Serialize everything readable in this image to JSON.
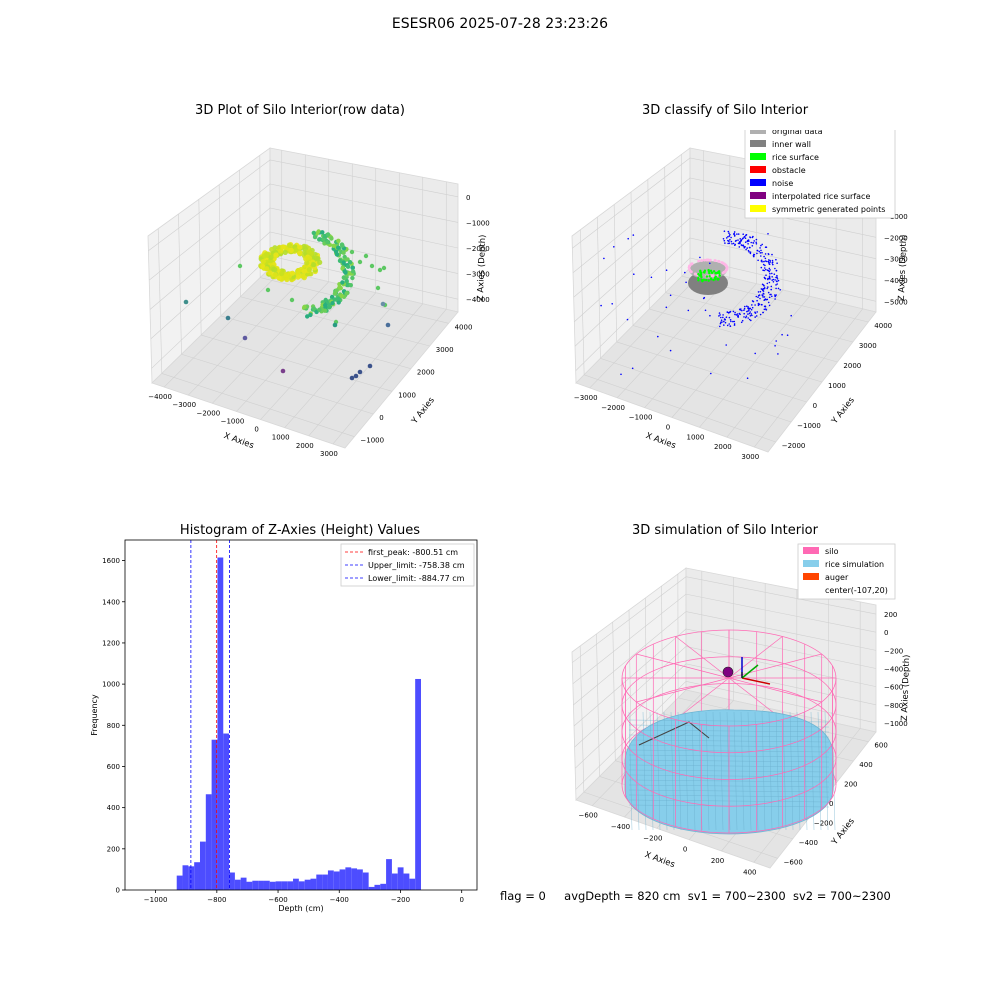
{
  "figure": {
    "suptitle": "ESESR06 2025-07-28 23:23:26",
    "status": {
      "flag": "flag = 0",
      "avg_depth": "avgDepth = 820 cm",
      "sv1": "sv1 = 700~2300",
      "sv2": "sv2 = 700~2300"
    }
  },
  "chart_data": [
    {
      "type": "scatter",
      "title": "3D Plot of Silo Interior(row data)",
      "projection": "3d",
      "xlabel": "X Axies",
      "ylabel": "Y Axies",
      "zlabel": "Z Axies (Depth)",
      "x_ticks": [
        "−4000",
        "−3000",
        "−2000",
        "−1000",
        "0",
        "1000",
        "2000",
        "3000"
      ],
      "y_ticks": [
        "−1000",
        "0",
        "1000",
        "2000",
        "3000",
        "4000"
      ],
      "z_ticks": [
        "0",
        "−1000",
        "−2000",
        "−3000",
        "−4000"
      ],
      "xlim": [
        -4000,
        3000
      ],
      "ylim": [
        -1500,
        4500
      ],
      "zlim": [
        -4500,
        0
      ],
      "colormap": "viridis",
      "clusters": [
        {
          "name": "",
          "x_range": [
            -1200,
            0
          ],
          "y_range": [
            1000,
            2000
          ],
          "z_range": [
            -2300,
            -1900
          ],
          "color": "#dfe318",
          "count": 260
        },
        {
          "name": "",
          "x_range": [
            -600,
            1200
          ],
          "y_range": [
            800,
            2600
          ],
          "z_range": [
            -3200,
            -1800
          ],
          "color": "#6ccd5a",
          "count": 160
        },
        {
          "name": "",
          "x_range": [
            -2500,
            2500
          ],
          "y_range": [
            -500,
            3500
          ],
          "z_range": [
            -4200,
            -2500
          ],
          "color": "#3b528b",
          "count": 12
        }
      ]
    },
    {
      "type": "scatter",
      "title": "3D classify of Silo Interior",
      "projection": "3d",
      "xlabel": "X Axies",
      "ylabel": "Y Axies",
      "zlabel": "Z Axies (Depth)",
      "x_ticks": [
        "−3000",
        "−2000",
        "−1000",
        "0",
        "1000",
        "2000",
        "3000"
      ],
      "y_ticks": [
        "−2000",
        "−1000",
        "0",
        "1000",
        "2000",
        "3000",
        "4000"
      ],
      "z_ticks": [
        "0",
        "−1000",
        "−2000",
        "−3000",
        "−4000",
        "−5000"
      ],
      "xlim": [
        -3500,
        3000
      ],
      "ylim": [
        -2000,
        4500
      ],
      "zlim": [
        -5500,
        0
      ],
      "legend": {
        "placement": "top-right",
        "entries": [
          {
            "label": "original data",
            "color": "#b0b0b0"
          },
          {
            "label": "inner wall",
            "color": "#808080"
          },
          {
            "label": "rice surface",
            "color": "#00ff00"
          },
          {
            "label": "obstacle",
            "color": "#ff0000"
          },
          {
            "label": "noise",
            "color": "#0000ff"
          },
          {
            "label": "interpolated rice surface",
            "color": "#800080"
          },
          {
            "label": "symmetric generated points",
            "color": "#ffff00"
          }
        ]
      }
    },
    {
      "type": "bar",
      "title": "Histogram of Z-Axies (Height) Values",
      "xlabel": "Depth (cm)",
      "ylabel": "Frequency",
      "xlim": [
        -1100,
        50
      ],
      "ylim": [
        0,
        1700
      ],
      "x_ticks": [
        -1000,
        -800,
        -600,
        -400,
        -200,
        0
      ],
      "y_ticks": [
        0,
        200,
        400,
        600,
        800,
        1000,
        1200,
        1400,
        1600
      ],
      "bin_width": 19,
      "bar_color": "#4d4dff",
      "bins_start": [
        -950,
        -931,
        -912,
        -893,
        -874,
        -855,
        -836,
        -817,
        -798,
        -779,
        -760,
        -741,
        -722,
        -703,
        -684,
        -665,
        -646,
        -627,
        -608,
        -589,
        -570,
        -551,
        -532,
        -513,
        -494,
        -475,
        -456,
        -437,
        -418,
        -399,
        -380,
        -361,
        -342,
        -323,
        -304,
        -285,
        -266,
        -247,
        -228,
        -209,
        -190,
        -171,
        -152,
        -133,
        -114,
        -95,
        -76,
        -57,
        -38,
        -19
      ],
      "counts": [
        0,
        70,
        120,
        115,
        135,
        235,
        465,
        730,
        1615,
        760,
        85,
        50,
        60,
        40,
        45,
        45,
        45,
        40,
        42,
        42,
        42,
        55,
        42,
        50,
        55,
        75,
        75,
        95,
        90,
        100,
        110,
        105,
        100,
        85,
        15,
        25,
        30,
        150,
        80,
        110,
        80,
        55,
        1025,
        0,
        0,
        0,
        0,
        0,
        0,
        0
      ],
      "reference_lines": [
        {
          "label": "first_peak: -800.51 cm",
          "x": -800.51,
          "color": "#ff0000"
        },
        {
          "label": "Upper_limit: -758.38 cm",
          "x": -758.38,
          "color": "#0000ff"
        },
        {
          "label": "Lower_limit: -884.77 cm",
          "x": -884.77,
          "color": "#0000ff"
        }
      ],
      "legend": {
        "placement": "top-right"
      }
    },
    {
      "type": "surface",
      "title": "3D simulation of Silo Interior",
      "projection": "3d",
      "xlabel": "X Axies",
      "ylabel": "Y Axies",
      "zlabel": "Z Axies (Depth)",
      "x_ticks": [
        "−600",
        "−400",
        "−200",
        "0",
        "200",
        "400"
      ],
      "y_ticks": [
        "−600",
        "−400",
        "−200",
        "0",
        "200",
        "400",
        "600"
      ],
      "z_ticks": [
        "200",
        "0",
        "−200",
        "−400",
        "−600",
        "−800",
        "−1000"
      ],
      "xlim": [
        -700,
        500
      ],
      "ylim": [
        -650,
        650
      ],
      "zlim": [
        -1050,
        300
      ],
      "legend": {
        "placement": "top-right",
        "entries": [
          {
            "label": "silo",
            "color": "#ff69b4"
          },
          {
            "label": "rice simulation",
            "color": "#87ceeb"
          },
          {
            "label": "auger",
            "color": "#ff4500"
          },
          {
            "label": "center(-107,20)",
            "color": ""
          }
        ]
      }
    }
  ]
}
